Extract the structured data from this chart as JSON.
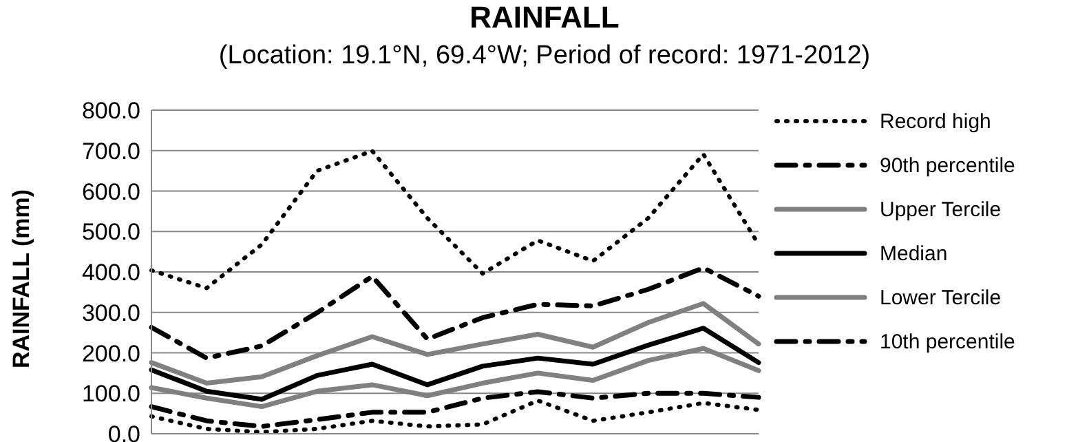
{
  "chart_data": {
    "type": "line",
    "title": "RAINFALL",
    "subtitle": "(Location: 19.1°N, 69.4°W; Period of record: 1971-2012)",
    "ylabel": "RAINFALL (mm)",
    "categories": [
      null,
      null,
      null,
      null,
      null,
      null,
      null,
      null,
      null,
      null,
      null,
      null
    ],
    "ylim": [
      0,
      800
    ],
    "yticks": [
      {
        "value": 0,
        "label": "0.0"
      },
      {
        "value": 100,
        "label": "100.0"
      },
      {
        "value": 200,
        "label": "200.0"
      },
      {
        "value": 300,
        "label": "300.0"
      },
      {
        "value": 400,
        "label": "400.0"
      },
      {
        "value": 500,
        "label": "500.0"
      },
      {
        "value": 600,
        "label": "600.0"
      },
      {
        "value": 700,
        "label": "700.0"
      },
      {
        "value": 800,
        "label": "800.0"
      }
    ],
    "grid": "y",
    "legend": "right",
    "marker": "none",
    "series": [
      {
        "name": "Record high",
        "color": "#000000",
        "line_style": "dotted",
        "values": [
          404,
          360,
          468,
          650,
          699,
          533,
          396,
          478,
          427,
          533,
          691,
          468
        ]
      },
      {
        "name": "90th percentile",
        "color": "#000000",
        "line_style": "dashed",
        "values": [
          263,
          187,
          217,
          299,
          389,
          234,
          287,
          320,
          316,
          357,
          410,
          340
        ]
      },
      {
        "name": "Upper Tercile",
        "color": "#808080",
        "line_style": "solid",
        "values": [
          176,
          125,
          141,
          193,
          240,
          196,
          222,
          246,
          214,
          275,
          322,
          222
        ]
      },
      {
        "name": "Median",
        "color": "#000000",
        "line_style": "solid",
        "values": [
          158,
          105,
          85,
          144,
          172,
          121,
          167,
          187,
          172,
          219,
          261,
          176
        ]
      },
      {
        "name": "Lower Tercile",
        "color": "#808080",
        "line_style": "solid",
        "values": [
          114,
          88,
          67,
          105,
          121,
          94,
          125,
          150,
          132,
          181,
          211,
          156
        ]
      },
      {
        "name": "10th percentile",
        "color": "#000000",
        "line_style": "dashed",
        "values": [
          67,
          32,
          18,
          35,
          53,
          53,
          88,
          104,
          88,
          100,
          100,
          90
        ]
      },
      {
        "color": "#000000",
        "line_style": "dotted",
        "values": [
          43,
          12,
          4,
          12,
          32,
          18,
          23,
          82,
          32,
          53,
          76,
          59
        ]
      }
    ]
  }
}
